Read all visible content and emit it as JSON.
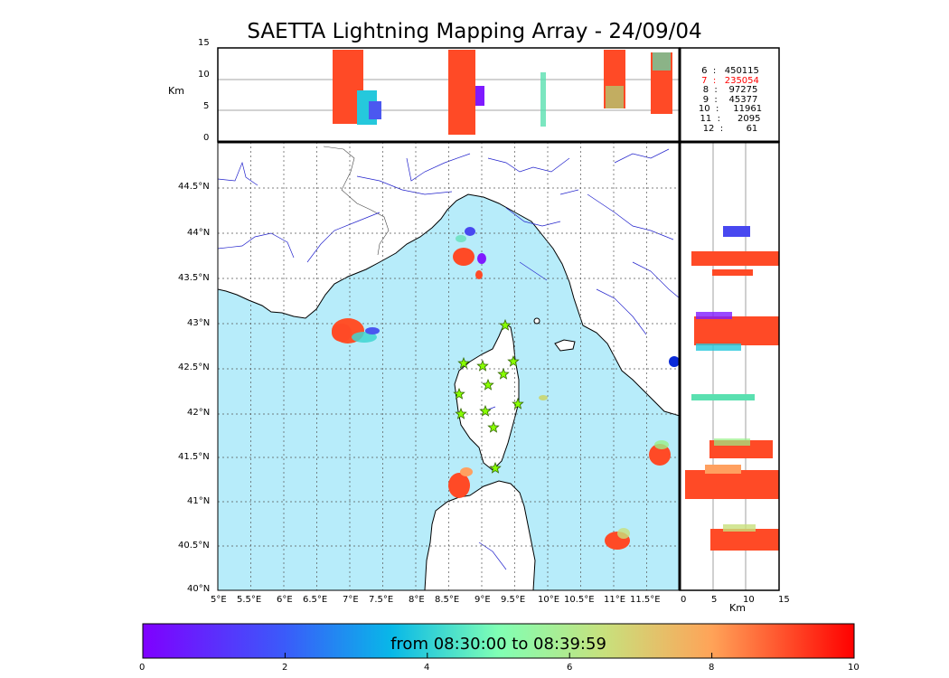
{
  "title": "SAETTA Lightning Mapping Array - 24/09/04",
  "alt_panel": {
    "ylabel": "Km",
    "yticks": [
      "15",
      "10",
      "5",
      "0"
    ]
  },
  "map": {
    "lon_ticks": [
      "5°E",
      "5.5°E",
      "6°E",
      "6.5°E",
      "7°E",
      "7.5°E",
      "8°E",
      "8.5°E",
      "9°E",
      "9.5°E",
      "10°E",
      "10.5°E",
      "11°E",
      "11.5°E"
    ],
    "lat_ticks": [
      "44.5°N",
      "44°N",
      "43.5°N",
      "43°N",
      "42.5°N",
      "42°N",
      "41.5°N",
      "41°N",
      "40.5°N",
      "40°N"
    ],
    "sea_color": "#b7ecfa",
    "land_color": "#ffffff",
    "river_color": "#2222cc"
  },
  "side_panel": {
    "xlabel": "Km",
    "xticks": [
      "0",
      "5",
      "10",
      "15"
    ]
  },
  "stations_stats": [
    {
      "label": "6  :   450115",
      "color": "#000000"
    },
    {
      "label": "7  :   235054",
      "color": "#ff0000"
    },
    {
      "label": "8  :    97275",
      "color": "#000000"
    },
    {
      "label": "9  :    45377",
      "color": "#000000"
    },
    {
      "label": "10  :     11961",
      "color": "#000000"
    },
    {
      "label": "11  :      2095",
      "color": "#000000"
    },
    {
      "label": "12  :        61",
      "color": "#000000"
    }
  ],
  "colorbar": {
    "label": "from 08:30:00 to 08:39:59",
    "ticks": [
      "0",
      "2",
      "4",
      "6",
      "8",
      "10"
    ],
    "range": [
      0,
      10
    ],
    "colormap": "rainbow"
  },
  "markers": {
    "station_icon": "star-icon",
    "station_color": "#88ff00"
  }
}
